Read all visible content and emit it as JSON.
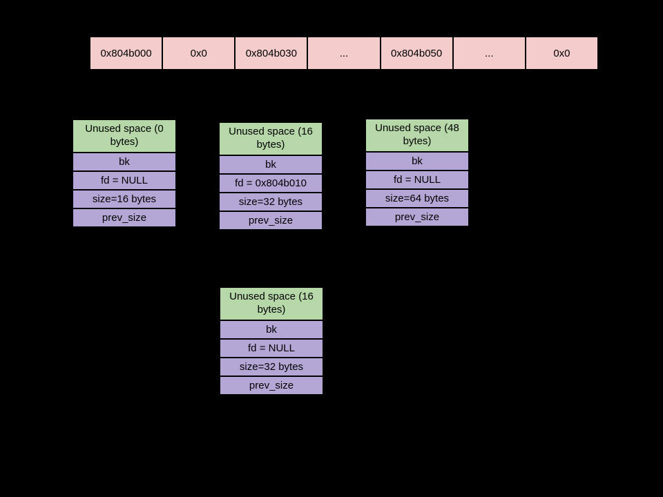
{
  "memory_row": {
    "cells": [
      "0x804b000",
      "0x0",
      "0x804b030",
      "...",
      "0x804b050",
      "...",
      "0x0"
    ]
  },
  "chunks": [
    {
      "header": "Unused space (0 bytes)",
      "fields": [
        "bk",
        "fd = NULL",
        "size=16 bytes",
        "prev_size"
      ]
    },
    {
      "header": "Unused space (16 bytes)",
      "fields": [
        "bk",
        "fd = 0x804b010",
        "size=32 bytes",
        "prev_size"
      ]
    },
    {
      "header": "Unused space (48 bytes)",
      "fields": [
        "bk",
        "fd = NULL",
        "size=64 bytes",
        "prev_size"
      ]
    },
    {
      "header": "Unused space (16 bytes)",
      "fields": [
        "bk",
        "fd = NULL",
        "size=32 bytes",
        "prev_size"
      ]
    }
  ],
  "colors": {
    "background": "#000000",
    "memory_cell_fill": "#f4cccc",
    "unused_header_fill": "#b6d7a8",
    "field_row_fill": "#b4a7d6",
    "border": "#000000",
    "text": "#000000"
  }
}
